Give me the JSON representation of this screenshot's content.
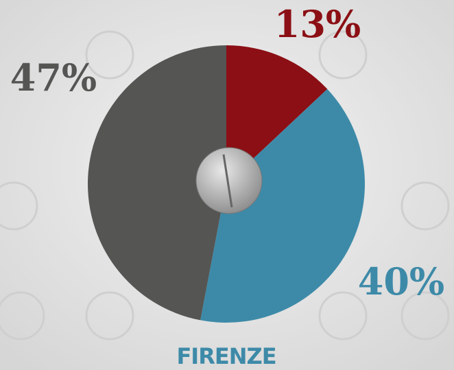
{
  "chart_data": {
    "type": "pie",
    "title": "FIRENZE",
    "values": [
      13,
      40,
      47
    ],
    "value_labels": [
      "13%",
      "40%",
      "47%"
    ],
    "colors": [
      "#8b0f14",
      "#3d8aa8",
      "#555553"
    ]
  }
}
